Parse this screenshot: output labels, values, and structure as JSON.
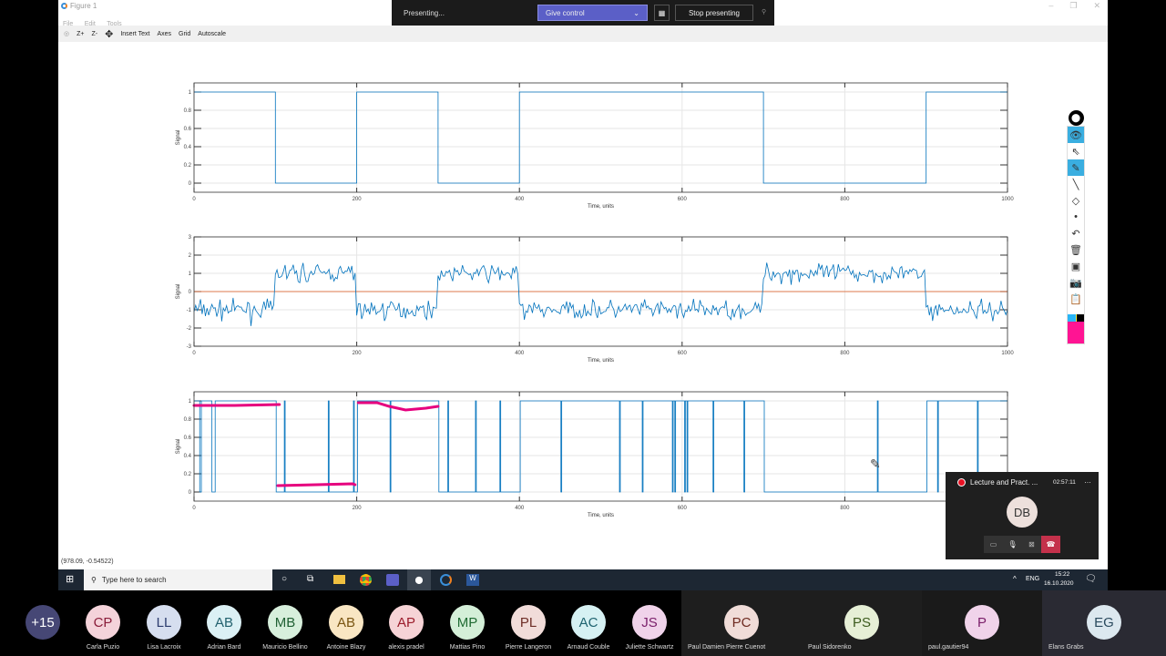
{
  "window": {
    "title": "Figure 1",
    "menu": [
      "File",
      "Edit",
      "Tools"
    ],
    "toolbar": [
      "Z+",
      "Z-",
      "Insert Text",
      "Axes",
      "Grid",
      "Autoscale"
    ],
    "status_coords": "(978.09, -0.54522)"
  },
  "presenting": {
    "status": "Presenting...",
    "give_control": "Give control",
    "stop": "Stop presenting",
    "accent": "#5b5fc7"
  },
  "call": {
    "title": "Lecture and Pract. ...",
    "timer": "02:57:11",
    "initials": "DB",
    "hangup_color": "#c4314b"
  },
  "taskbar": {
    "search_placeholder": "Type here to search",
    "lang": "ENG",
    "time": "15:22",
    "date": "16.10.2020"
  },
  "participants": [
    {
      "initials": "+15",
      "name": "",
      "bg": "#464775",
      "fg": "#fff"
    },
    {
      "initials": "CP",
      "name": "Carla Puzio",
      "bg": "#f4d3da",
      "fg": "#8a1d3a"
    },
    {
      "initials": "LL",
      "name": "Lisa Lacroix",
      "bg": "#d6deef",
      "fg": "#2c3c6e"
    },
    {
      "initials": "AB",
      "name": "Adrian Bard",
      "bg": "#dbf0f4",
      "fg": "#22616e"
    },
    {
      "initials": "MB",
      "name": "Mauricio Bellino",
      "bg": "#d7efdc",
      "fg": "#1f5f33"
    },
    {
      "initials": "AB",
      "name": "Antoine Blazy",
      "bg": "#f9e6c3",
      "fg": "#7a5512"
    },
    {
      "initials": "AP",
      "name": "alexis pradel",
      "bg": "#f6d3d6",
      "fg": "#9b1c2b"
    },
    {
      "initials": "MP",
      "name": "Mattias Pino",
      "bg": "#d4efd8",
      "fg": "#1f6b33"
    },
    {
      "initials": "PL",
      "name": "Pierre Langeron",
      "bg": "#f1dcd9",
      "fg": "#6e2e27"
    },
    {
      "initials": "AC",
      "name": "Arnaud Couble",
      "bg": "#d6f1f3",
      "fg": "#1f6470"
    },
    {
      "initials": "JS",
      "name": "Juliette Schwartz",
      "bg": "#f0d3ea",
      "fg": "#7a1f6a"
    },
    {
      "initials": "PC",
      "name": "Paul Damien Pierre Cuenot",
      "bg": "#f0dcd8",
      "fg": "#6e2a20"
    },
    {
      "initials": "PS",
      "name": "Paul Sidorenko",
      "bg": "#e6efd6",
      "fg": "#3b5a1c"
    },
    {
      "initials": "P",
      "name": "paul.gautier94",
      "bg": "#f0d3ea",
      "fg": "#7a1f6a"
    },
    {
      "initials": "EG",
      "name": "Elans Grabs",
      "bg": "#dce8ef",
      "fg": "#2a4a5e"
    }
  ],
  "chart_data": [
    {
      "type": "line",
      "ylabel": "Signal",
      "xlabel": "Time, units",
      "xlim": [
        0,
        1000
      ],
      "ylim": [
        -0.1,
        1.1
      ],
      "xticks": [
        "0",
        "200",
        "400",
        "600",
        "800",
        "1000"
      ],
      "yticks": [
        "0",
        "0.2",
        "0.4",
        "0.6",
        "0.8",
        "1"
      ],
      "grid": true,
      "color": "#0072bd",
      "steps": [
        [
          0,
          1
        ],
        [
          100,
          0
        ],
        [
          200,
          1
        ],
        [
          300,
          0
        ],
        [
          400,
          1
        ],
        [
          700,
          0
        ],
        [
          900,
          1
        ]
      ]
    },
    {
      "type": "line",
      "ylabel": "Signal",
      "xlabel": "Time, units",
      "xlim": [
        0,
        1000
      ],
      "ylim": [
        -3,
        3
      ],
      "xticks": [
        "0",
        "200",
        "400",
        "600",
        "800",
        "1000"
      ],
      "yticks": [
        "-3",
        "-2",
        "-1",
        "0",
        "1",
        "2",
        "3"
      ],
      "grid": true,
      "color": "#0072bd",
      "description_levels": [
        [
          0,
          -1
        ],
        [
          100,
          1
        ],
        [
          200,
          -1
        ],
        [
          300,
          1
        ],
        [
          400,
          -1
        ],
        [
          700,
          1
        ],
        [
          900,
          -1
        ]
      ],
      "noise_std": 0.5,
      "threshold": 0,
      "threshold_color": "#d95319"
    },
    {
      "type": "line",
      "ylabel": "Signal",
      "xlabel": "Time, units",
      "xlim": [
        0,
        1000
      ],
      "ylim": [
        -0.1,
        1.1
      ],
      "xticks": [
        "0",
        "200",
        "400",
        "600",
        "800",
        "1000"
      ],
      "yticks": [
        "0",
        "0.2",
        "0.4",
        "0.6",
        "0.8",
        "1"
      ],
      "grid": true,
      "color": "#0072bd",
      "steps": [
        [
          0,
          1
        ],
        [
          7,
          0
        ],
        [
          9,
          1
        ],
        [
          22,
          0
        ],
        [
          26,
          1
        ],
        [
          101,
          0
        ],
        [
          111,
          1
        ],
        [
          112,
          0
        ],
        [
          165,
          1
        ],
        [
          166,
          0
        ],
        [
          196,
          1
        ],
        [
          197,
          0
        ],
        [
          201,
          1
        ],
        [
          241,
          0
        ],
        [
          242,
          1
        ],
        [
          301,
          0
        ],
        [
          312,
          1
        ],
        [
          313,
          0
        ],
        [
          346,
          1
        ],
        [
          347,
          0
        ],
        [
          376,
          1
        ],
        [
          377,
          0
        ],
        [
          401,
          1
        ],
        [
          451,
          0
        ],
        [
          452,
          1
        ],
        [
          523,
          0
        ],
        [
          524,
          1
        ],
        [
          551,
          0
        ],
        [
          552,
          1
        ],
        [
          588,
          0
        ],
        [
          589,
          1
        ],
        [
          591,
          0
        ],
        [
          592,
          1
        ],
        [
          603,
          0
        ],
        [
          604,
          1
        ],
        [
          606,
          0
        ],
        [
          607,
          1
        ],
        [
          638,
          0
        ],
        [
          639,
          1
        ],
        [
          676,
          0
        ],
        [
          677,
          1
        ],
        [
          701,
          0
        ],
        [
          840,
          1
        ],
        [
          841,
          0
        ],
        [
          901,
          1
        ],
        [
          914,
          0
        ],
        [
          915,
          1
        ],
        [
          963,
          0
        ],
        [
          964,
          1
        ]
      ],
      "annotations": [
        {
          "color": "#e6007e",
          "points": [
            [
              0,
              0.95
            ],
            [
              50,
              0.95
            ],
            [
              105,
              0.96
            ]
          ]
        },
        {
          "color": "#e6007e",
          "points": [
            [
              103,
              0.07
            ],
            [
              150,
              0.08
            ],
            [
              195,
              0.09
            ],
            [
              198,
              0.08
            ]
          ]
        },
        {
          "color": "#e6007e",
          "points": [
            [
              202,
              0.98
            ],
            [
              225,
              0.98
            ],
            [
              240,
              0.94
            ],
            [
              260,
              0.9
            ],
            [
              285,
              0.92
            ],
            [
              300,
              0.94
            ]
          ]
        }
      ]
    }
  ]
}
